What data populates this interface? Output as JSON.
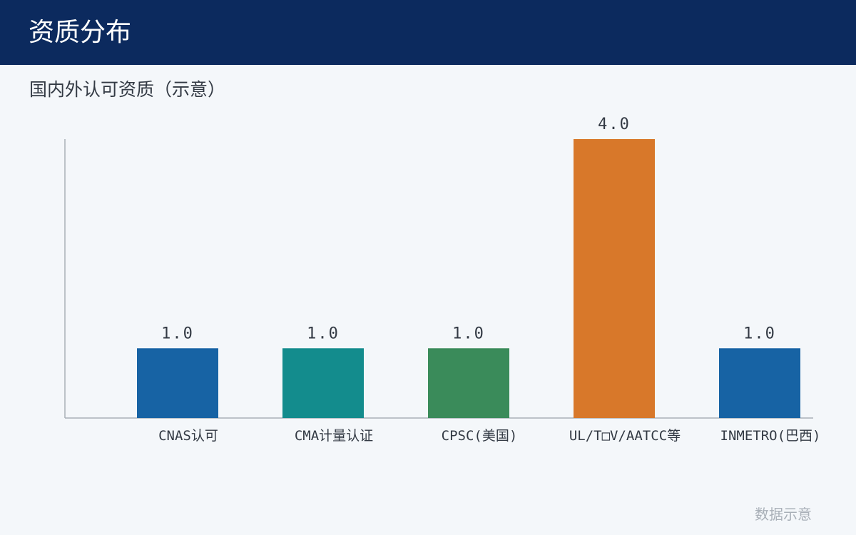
{
  "header": {
    "title": "资质分布"
  },
  "subtitle": "国内外认可资质（示意）",
  "footer_note": "数据示意",
  "chart_data": {
    "type": "bar",
    "title": "国内外认可资质（示意）",
    "categories": [
      "CNAS认可",
      "CMA计量认证",
      "CPSC(美国)",
      "UL/T□V/AATCC等",
      "INMETRO(巴西)"
    ],
    "values": [
      1.0,
      1.0,
      1.0,
      4.0,
      1.0
    ],
    "value_labels": [
      "1.0",
      "1.0",
      "1.0",
      "4.0",
      "1.0"
    ],
    "bar_colors": [
      "#1763a4",
      "#138c8d",
      "#3a8b5a",
      "#d8782a",
      "#1763a4"
    ],
    "xlabel": "",
    "ylabel": "",
    "ylim": [
      0,
      4
    ],
    "grid": false,
    "legend": "none"
  },
  "colors": {
    "header_bg": "#0c2a5e",
    "page_bg": "#f4f7fa",
    "axis": "#a9b0b8"
  }
}
